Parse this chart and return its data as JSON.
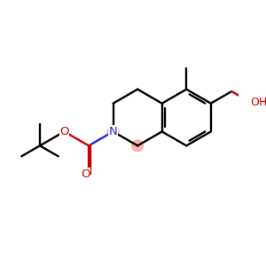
{
  "bg": "#ffffff",
  "bc": "#000000",
  "nc": "#2222dd",
  "oc": "#cc0000",
  "hc": "#ff9999",
  "lw": 1.7,
  "lw_thin": 1.7,
  "bl": 1.0,
  "xlim": [
    -4.2,
    4.2
  ],
  "ylim": [
    -3.5,
    3.0
  ],
  "figsize": [
    3.0,
    3.0
  ],
  "dpi": 100
}
